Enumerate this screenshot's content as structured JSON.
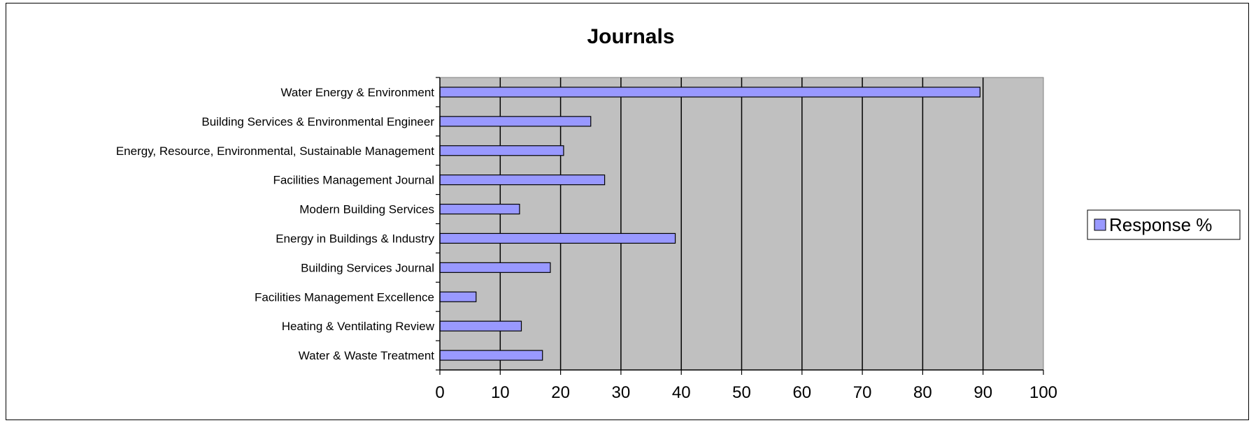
{
  "chart_data": {
    "type": "bar",
    "orientation": "horizontal",
    "title": "Journals",
    "categories": [
      "Water Energy & Environment",
      "Building Services & Environmental Engineer",
      "Energy, Resource, Environmental, Sustainable Management",
      "Facilities Management Journal",
      "Modern Building Services",
      "Energy in Buildings & Industry",
      "Building Services Journal",
      "Facilities Management Excellence",
      "Heating & Ventilating Review",
      "Water & Waste Treatment"
    ],
    "series": [
      {
        "name": "Response %",
        "values": [
          89.5,
          25,
          20.5,
          27.3,
          13.2,
          39,
          18.3,
          6,
          13.5,
          17
        ]
      }
    ],
    "xlim": [
      0,
      100
    ],
    "x_ticks": [
      "0",
      "10",
      "20",
      "30",
      "40",
      "50",
      "60",
      "70",
      "80",
      "90",
      "100"
    ],
    "grid": true,
    "legend_position": "right",
    "colors": {
      "bar_fill": "#9999ff",
      "bar_stroke": "#000000",
      "plot_background": "#c0c0c0",
      "gridline": "#000000"
    }
  }
}
